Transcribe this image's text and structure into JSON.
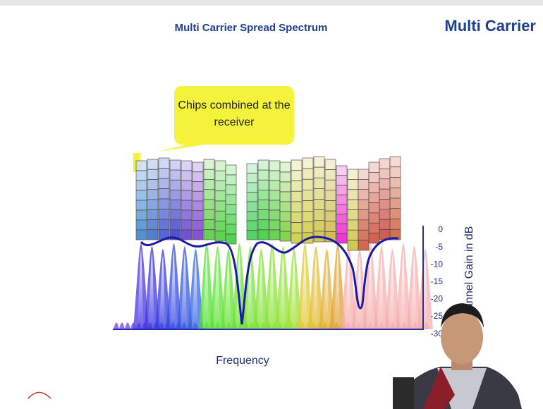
{
  "slide": {
    "title": "Multi Carrier Spread Spectrum",
    "header": "Multi Carrier",
    "callout": "Chips combined at the receiver",
    "x_axis_label": "Frequency",
    "y_axis_label": "Channel Gain in dB",
    "gain_ticks": [
      0,
      -5,
      -10,
      -15,
      -20,
      -25,
      -30
    ]
  }
}
